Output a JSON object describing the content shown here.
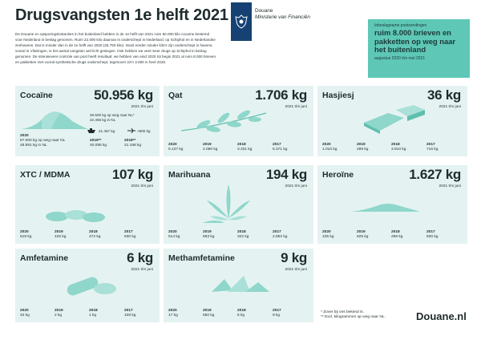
{
  "header": {
    "title": "Drugsvangsten 1e helft 2021",
    "intro": "De Douane en opsporingsinstanties in het buitenland hebben in de 1e helft van 2021 ruim 50.000 kilo cocaïne bestemd voor Nederland in beslag genomen. Ruim 22.000 kilo daarvan is onderschept in Nederland, op Schiphol en in Nederlandse zeehavens. Dat is minder dan in de 1e helft van 2020 (25.750 kilo). Nooit eerder minder kilo's zijn onderschept in havens, vooral in Vlissingen, is het aantal vangsten wel licht gestegen. Ook hebben we veel meer drugs op Schiphol in beslag genomen. De intensievere controle van post heeft resultaat: we hebben van eind 2020 tot begin 2021 al ruim 8.000 brieven en pakketten met vooral synthetische drugs onderschept, tegenover 22'n 3.000 in heel 2020."
  },
  "logo": {
    "line1": "Douane",
    "line2": "Ministerie van Financiën",
    "icon": "dutch-coat-of-arms-icon"
  },
  "mailbox": {
    "small": "Inbeslagname postzendingen",
    "big": "ruim 8.000 brieven en pakketten op weg naar het buitenland",
    "foot": "augustus 2020 t/m mei 2021"
  },
  "cards": {
    "cocaine": {
      "name": "Cocaïne",
      "kg": "50.956 kg",
      "period": "2021 t/m juni",
      "note1": "28.500 kg op weg naar NL*",
      "note2": "22.456 kg in NL",
      "ship": "21.457 kg",
      "plane": ">800 kg",
      "y2020_label": "2020",
      "y2020_a": "67.000 kg op weg naar NL",
      "y2020_b": "48.891 kg in NL",
      "y2019_label": "2019**",
      "y2019": "40.095 kg",
      "y2018_label": "2018**",
      "y2018": "21.188 kg",
      "color": "#7fd0c3"
    },
    "qat": {
      "name": "Qat",
      "kg": "1.706 kg",
      "period": "2021 t/m juni",
      "years": [
        {
          "label": "2020",
          "value": "9.137 kg"
        },
        {
          "label": "2019",
          "value": "2.080 kg"
        },
        {
          "label": "2018",
          "value": "3.331 kg"
        },
        {
          "label": "2017",
          "value": "6.371 kg"
        }
      ]
    },
    "hasjiesj": {
      "name": "Hasjiesj",
      "kg": "36 kg",
      "period": "2021 t/m juni",
      "years": [
        {
          "label": "2020",
          "value": "1.010 kg"
        },
        {
          "label": "2019",
          "value": "299 kg"
        },
        {
          "label": "2018",
          "value": "3.910 kg"
        },
        {
          "label": "2017",
          "value": "716 kg"
        }
      ]
    },
    "xtc": {
      "name": "XTC / MDMA",
      "kg": "107 kg",
      "period": "2021 t/m juni",
      "years": [
        {
          "label": "2020",
          "value": "519 kg"
        },
        {
          "label": "2019",
          "value": "426 kg"
        },
        {
          "label": "2018",
          "value": "472 kg"
        },
        {
          "label": "2017",
          "value": "830 kg"
        }
      ]
    },
    "marihuana": {
      "name": "Marihuana",
      "kg": "194 kg",
      "period": "2021 t/m juni",
      "years": [
        {
          "label": "2020",
          "value": "514 kg"
        },
        {
          "label": "2019",
          "value": "583 kg"
        },
        {
          "label": "2018",
          "value": "322 kg"
        },
        {
          "label": "2017",
          "value": "2.852 kg"
        }
      ]
    },
    "heroine": {
      "name": "Heroïne",
      "kg": "1.627 kg",
      "period": "2021 t/m juni",
      "years": [
        {
          "label": "2020",
          "value": "105 kg"
        },
        {
          "label": "2019",
          "value": "625 kg"
        },
        {
          "label": "2018",
          "value": "296 kg"
        },
        {
          "label": "2017",
          "value": "830 kg"
        }
      ]
    },
    "amfetamine": {
      "name": "Amfetamine",
      "kg": "6 kg",
      "period": "2021 t/m juni",
      "years": [
        {
          "label": "2020",
          "value": "34 kg"
        },
        {
          "label": "2019",
          "value": "2 kg"
        },
        {
          "label": "2018",
          "value": "1 kg"
        },
        {
          "label": "2017",
          "value": "108 kg"
        }
      ]
    },
    "methamfetamine": {
      "name": "Methamfetamine",
      "kg": "9 kg",
      "period": "2021 t/m juni",
      "years": [
        {
          "label": "2020",
          "value": "17 kg"
        },
        {
          "label": "2019",
          "value": "550 kg"
        },
        {
          "label": "2018",
          "value": "6 kg"
        },
        {
          "label": "2017",
          "value": "9 kg"
        }
      ]
    }
  },
  "footnotes": {
    "n1": "* Zover bij ons bekend is.",
    "n2": "** Excl. kilogrammen op weg naar NL."
  },
  "site": "Douane.nl",
  "colors": {
    "card_bg": "#e4f3f1",
    "accent": "#5ec7b6",
    "illustration": "#8fd6cb",
    "illustration_dark": "#5fbfae",
    "text": "#1f2b2d",
    "logo_blue": "#154273"
  }
}
